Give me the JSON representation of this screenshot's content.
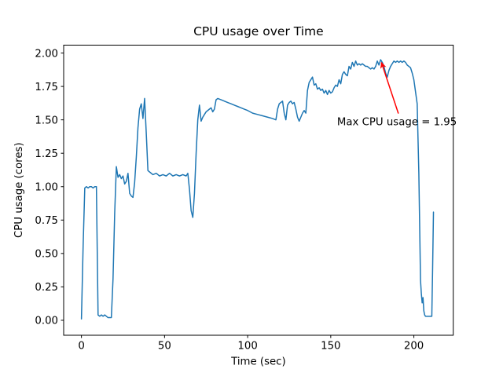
{
  "figure": {
    "background_color": "#ffffff"
  },
  "chart_data": {
    "type": "line",
    "title": "CPU usage over Time",
    "xlabel": "Time (sec)",
    "ylabel": "CPU usage (cores)",
    "grid": false,
    "legend": false,
    "axis_color": "#000000",
    "xlim": [
      -10.7,
      223.7
    ],
    "ylim": [
      -0.112,
      2.059
    ],
    "xticks": [
      {
        "value": 0,
        "label": "0"
      },
      {
        "value": 50,
        "label": "50"
      },
      {
        "value": 100,
        "label": "100"
      },
      {
        "value": 150,
        "label": "150"
      },
      {
        "value": 200,
        "label": "200"
      }
    ],
    "yticks": [
      {
        "value": 0.0,
        "label": "0.00"
      },
      {
        "value": 0.25,
        "label": "0.25"
      },
      {
        "value": 0.5,
        "label": "0.50"
      },
      {
        "value": 0.75,
        "label": "0.75"
      },
      {
        "value": 1.0,
        "label": "1.00"
      },
      {
        "value": 1.25,
        "label": "1.25"
      },
      {
        "value": 1.5,
        "label": "1.50"
      },
      {
        "value": 1.75,
        "label": "1.75"
      },
      {
        "value": 2.0,
        "label": "2.00"
      }
    ],
    "annotation": {
      "label": "Max CPU usage = 1.95",
      "color": "#ff0000",
      "point": [
        180,
        1.95
      ],
      "text_pos": [
        153.8,
        1.459
      ],
      "arrow_tail": [
        190.7,
        1.547
      ],
      "arrow_tip": [
        180.5,
        1.93
      ]
    },
    "series": [
      {
        "name": "CPU usage (cores)",
        "color": "#1f77b4",
        "points": [
          [
            0,
            0.01
          ],
          [
            1,
            0.55
          ],
          [
            2,
            0.99
          ],
          [
            3,
            1.0
          ],
          [
            4,
            0.99
          ],
          [
            5,
            1.0
          ],
          [
            6,
            1.0
          ],
          [
            7,
            0.99
          ],
          [
            8,
            1.0
          ],
          [
            9,
            1.0
          ],
          [
            10,
            0.04
          ],
          [
            11,
            0.03
          ],
          [
            12,
            0.04
          ],
          [
            13,
            0.03
          ],
          [
            14,
            0.04
          ],
          [
            15,
            0.03
          ],
          [
            16,
            0.02
          ],
          [
            17,
            0.02
          ],
          [
            18,
            0.02
          ],
          [
            19,
            0.31
          ],
          [
            20,
            0.8
          ],
          [
            21,
            1.15
          ],
          [
            22,
            1.07
          ],
          [
            23,
            1.09
          ],
          [
            24,
            1.06
          ],
          [
            25,
            1.08
          ],
          [
            26,
            1.02
          ],
          [
            27,
            1.04
          ],
          [
            28,
            1.1
          ],
          [
            29,
            0.95
          ],
          [
            30,
            0.93
          ],
          [
            31,
            0.92
          ],
          [
            32,
            1.03
          ],
          [
            33,
            1.22
          ],
          [
            34,
            1.44
          ],
          [
            35,
            1.58
          ],
          [
            36,
            1.62
          ],
          [
            37,
            1.51
          ],
          [
            38,
            1.66
          ],
          [
            39,
            1.4
          ],
          [
            40,
            1.12
          ],
          [
            41,
            1.11
          ],
          [
            43,
            1.09
          ],
          [
            45,
            1.1
          ],
          [
            47,
            1.08
          ],
          [
            49,
            1.09
          ],
          [
            51,
            1.08
          ],
          [
            53,
            1.1
          ],
          [
            55,
            1.08
          ],
          [
            57,
            1.09
          ],
          [
            59,
            1.08
          ],
          [
            61,
            1.09
          ],
          [
            63,
            1.08
          ],
          [
            64,
            1.1
          ],
          [
            65,
            0.98
          ],
          [
            66,
            0.82
          ],
          [
            67,
            0.77
          ],
          [
            68,
            0.95
          ],
          [
            69,
            1.25
          ],
          [
            70,
            1.5
          ],
          [
            71,
            1.61
          ],
          [
            72,
            1.49
          ],
          [
            73,
            1.52
          ],
          [
            74,
            1.54
          ],
          [
            75,
            1.56
          ],
          [
            76,
            1.57
          ],
          [
            77,
            1.58
          ],
          [
            78,
            1.59
          ],
          [
            79,
            1.56
          ],
          [
            80,
            1.58
          ],
          [
            81,
            1.65
          ],
          [
            82,
            1.66
          ],
          [
            84,
            1.65
          ],
          [
            86,
            1.64
          ],
          [
            88,
            1.63
          ],
          [
            90,
            1.62
          ],
          [
            92,
            1.61
          ],
          [
            94,
            1.6
          ],
          [
            96,
            1.59
          ],
          [
            98,
            1.58
          ],
          [
            100,
            1.57
          ],
          [
            103,
            1.55
          ],
          [
            106,
            1.54
          ],
          [
            109,
            1.53
          ],
          [
            112,
            1.52
          ],
          [
            115,
            1.51
          ],
          [
            117,
            1.5
          ],
          [
            118,
            1.58
          ],
          [
            119,
            1.62
          ],
          [
            120,
            1.63
          ],
          [
            121,
            1.64
          ],
          [
            122,
            1.55
          ],
          [
            123,
            1.5
          ],
          [
            124,
            1.61
          ],
          [
            125,
            1.63
          ],
          [
            126,
            1.64
          ],
          [
            127,
            1.62
          ],
          [
            128,
            1.63
          ],
          [
            129,
            1.58
          ],
          [
            130,
            1.52
          ],
          [
            131,
            1.49
          ],
          [
            132,
            1.52
          ],
          [
            133,
            1.55
          ],
          [
            134,
            1.57
          ],
          [
            135,
            1.55
          ],
          [
            136,
            1.72
          ],
          [
            137,
            1.78
          ],
          [
            138,
            1.8
          ],
          [
            139,
            1.82
          ],
          [
            140,
            1.76
          ],
          [
            141,
            1.77
          ],
          [
            142,
            1.73
          ],
          [
            143,
            1.74
          ],
          [
            144,
            1.72
          ],
          [
            145,
            1.73
          ],
          [
            146,
            1.7
          ],
          [
            147,
            1.72
          ],
          [
            148,
            1.69
          ],
          [
            149,
            1.72
          ],
          [
            150,
            1.7
          ],
          [
            151,
            1.71
          ],
          [
            152,
            1.74
          ],
          [
            153,
            1.76
          ],
          [
            154,
            1.75
          ],
          [
            155,
            1.8
          ],
          [
            156,
            1.77
          ],
          [
            157,
            1.84
          ],
          [
            158,
            1.86
          ],
          [
            159,
            1.84
          ],
          [
            160,
            1.83
          ],
          [
            161,
            1.9
          ],
          [
            162,
            1.88
          ],
          [
            163,
            1.93
          ],
          [
            164,
            1.9
          ],
          [
            165,
            1.94
          ],
          [
            166,
            1.91
          ],
          [
            167,
            1.92
          ],
          [
            168,
            1.91
          ],
          [
            169,
            1.92
          ],
          [
            170,
            1.91
          ],
          [
            171,
            1.9
          ],
          [
            172,
            1.9
          ],
          [
            173,
            1.89
          ],
          [
            174,
            1.88
          ],
          [
            175,
            1.89
          ],
          [
            176,
            1.88
          ],
          [
            177,
            1.9
          ],
          [
            178,
            1.94
          ],
          [
            179,
            1.91
          ],
          [
            180,
            1.95
          ],
          [
            181,
            1.93
          ],
          [
            182,
            1.9
          ],
          [
            183,
            1.85
          ],
          [
            184,
            1.82
          ],
          [
            185,
            1.87
          ],
          [
            186,
            1.9
          ],
          [
            187,
            1.92
          ],
          [
            188,
            1.94
          ],
          [
            189,
            1.93
          ],
          [
            190,
            1.94
          ],
          [
            191,
            1.93
          ],
          [
            192,
            1.94
          ],
          [
            193,
            1.93
          ],
          [
            194,
            1.94
          ],
          [
            195,
            1.93
          ],
          [
            196,
            1.91
          ],
          [
            197,
            1.9
          ],
          [
            198,
            1.89
          ],
          [
            199,
            1.85
          ],
          [
            200,
            1.8
          ],
          [
            201,
            1.71
          ],
          [
            202,
            1.62
          ],
          [
            203,
            1.1
          ],
          [
            204,
            0.3
          ],
          [
            204.5,
            0.2
          ],
          [
            205,
            0.13
          ],
          [
            205.5,
            0.17
          ],
          [
            206,
            0.07
          ],
          [
            206.5,
            0.04
          ],
          [
            207,
            0.03
          ],
          [
            208,
            0.03
          ],
          [
            209,
            0.03
          ],
          [
            210,
            0.03
          ],
          [
            210.8,
            0.03
          ],
          [
            211.3,
            0.4
          ],
          [
            211.8,
            0.81
          ]
        ]
      }
    ]
  }
}
